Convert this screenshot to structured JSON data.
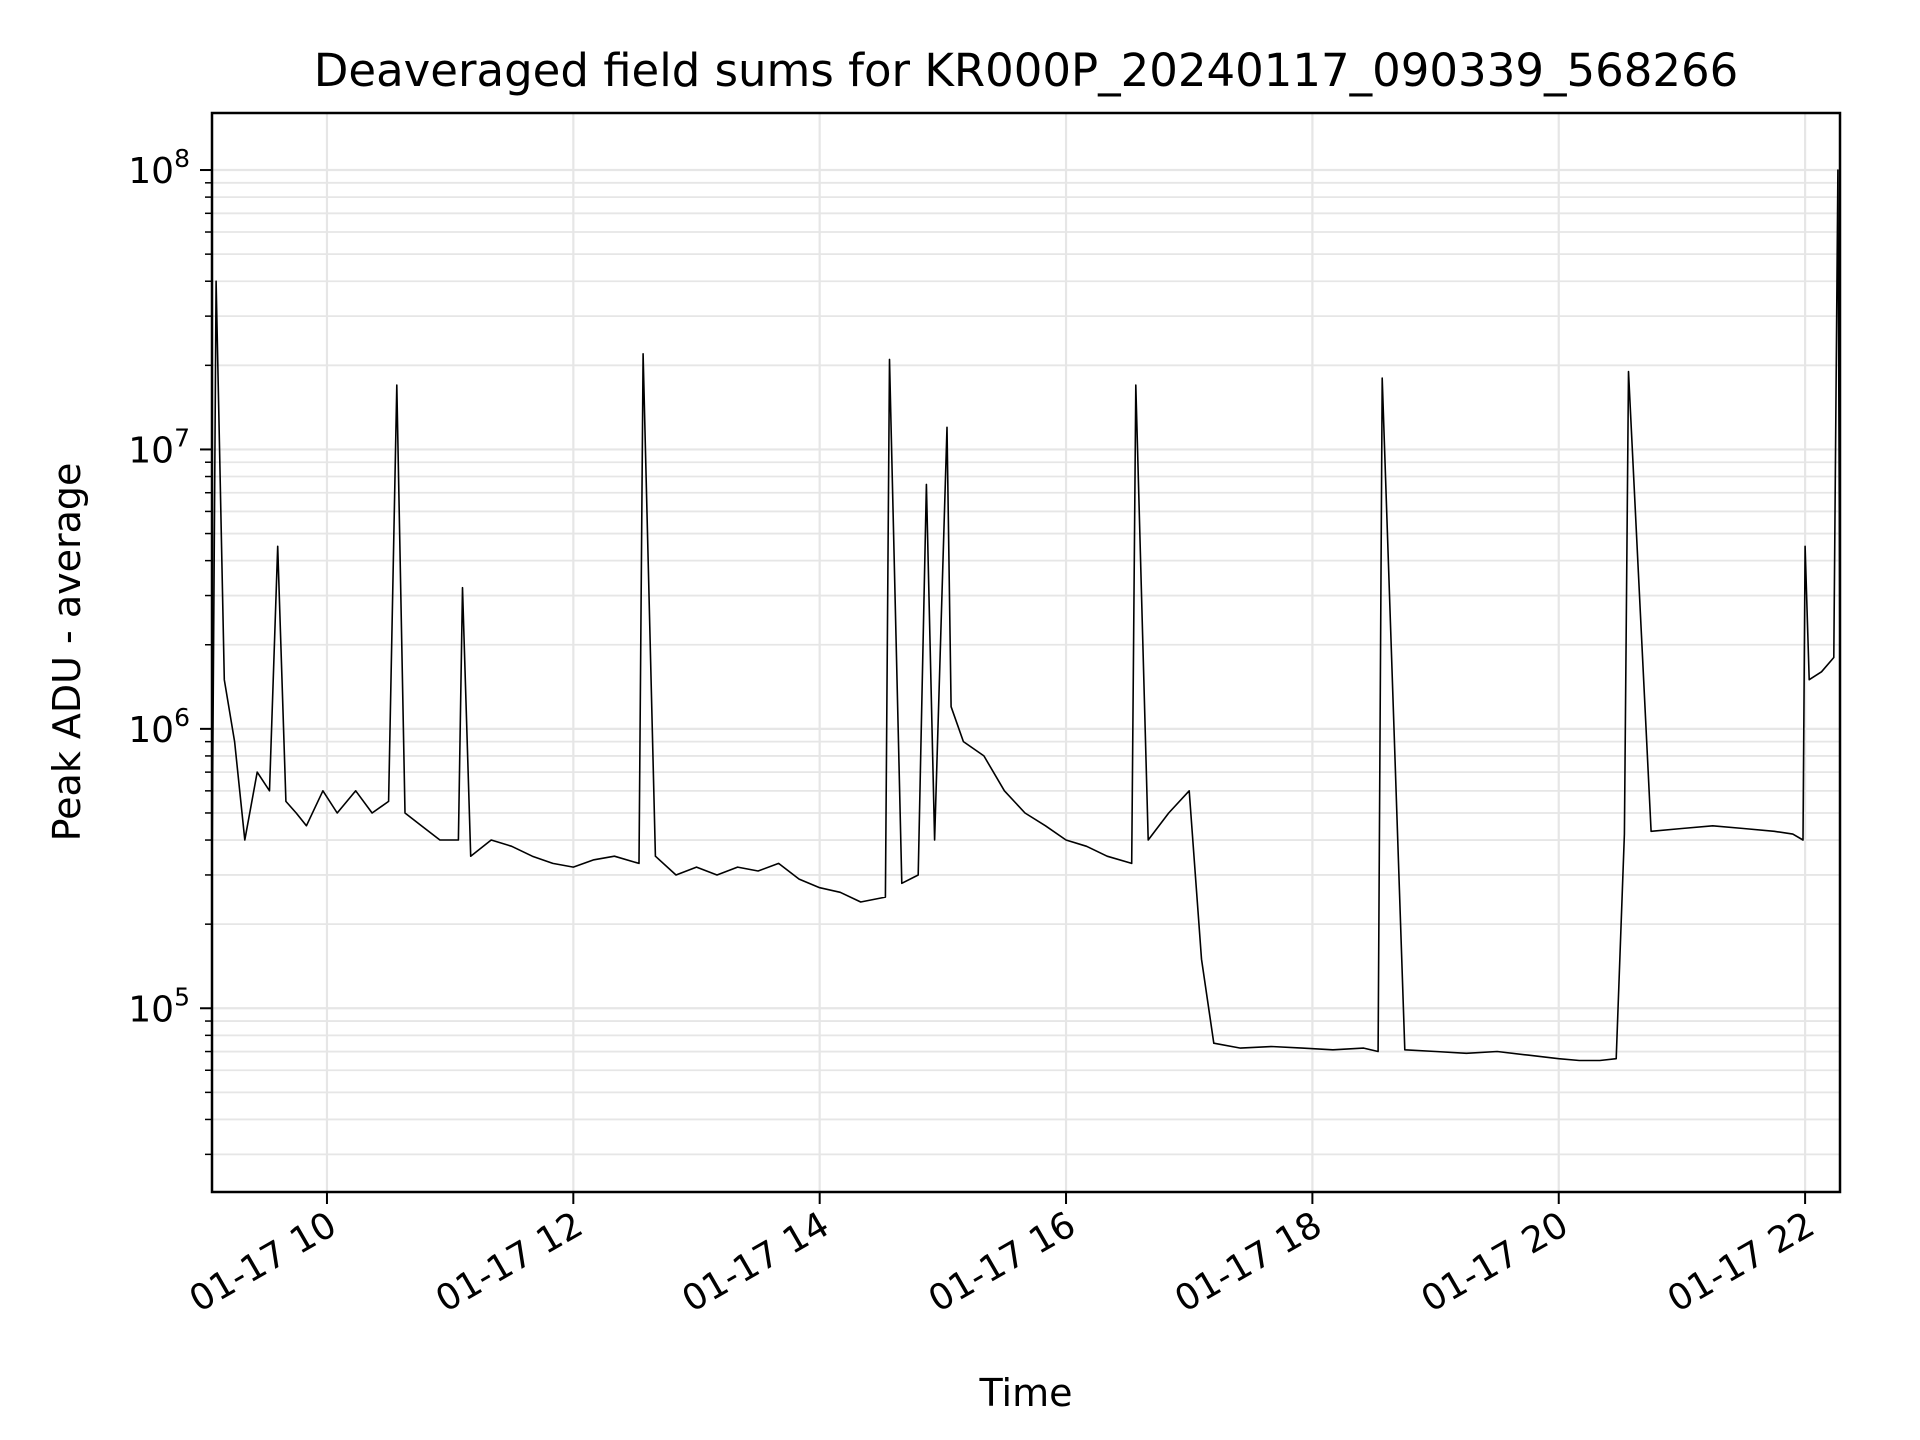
{
  "chart_data": {
    "type": "line",
    "title": "Deaveraged field sums for KR000P_20240117_090339_568266",
    "xlabel": "Time",
    "ylabel": "Peak ADU - average",
    "xscale": "time",
    "yscale": "log",
    "grid": true,
    "line_color": "#000000",
    "grid_color": "#e6e6e6",
    "xlim": [
      "2024-01-17 09:04",
      "2024-01-17 22:17"
    ],
    "ylim": [
      22000,
      160000000
    ],
    "x_ticks": [
      {
        "value": "2024-01-17 10:00",
        "label": "01-17 10"
      },
      {
        "value": "2024-01-17 12:00",
        "label": "01-17 12"
      },
      {
        "value": "2024-01-17 14:00",
        "label": "01-17 14"
      },
      {
        "value": "2024-01-17 16:00",
        "label": "01-17 16"
      },
      {
        "value": "2024-01-17 18:00",
        "label": "01-17 18"
      },
      {
        "value": "2024-01-17 20:00",
        "label": "01-17 20"
      },
      {
        "value": "2024-01-17 22:00",
        "label": "01-17 22"
      }
    ],
    "y_ticks": [
      {
        "value": 100000,
        "base": "10",
        "exp": "5"
      },
      {
        "value": 1000000,
        "base": "10",
        "exp": "6"
      },
      {
        "value": 10000000,
        "base": "10",
        "exp": "7"
      },
      {
        "value": 100000000,
        "base": "10",
        "exp": "8"
      }
    ],
    "series": [
      {
        "x": [
          "2024-01-17 09:04",
          "2024-01-17 09:06",
          "2024-01-17 09:10",
          "2024-01-17 09:15",
          "2024-01-17 09:20",
          "2024-01-17 09:26",
          "2024-01-17 09:32",
          "2024-01-17 09:36",
          "2024-01-17 09:40",
          "2024-01-17 09:45",
          "2024-01-17 09:50",
          "2024-01-17 09:58",
          "2024-01-17 10:05",
          "2024-01-17 10:14",
          "2024-01-17 10:22",
          "2024-01-17 10:30",
          "2024-01-17 10:34",
          "2024-01-17 10:38",
          "2024-01-17 10:46",
          "2024-01-17 10:55",
          "2024-01-17 11:04",
          "2024-01-17 11:06",
          "2024-01-17 11:10",
          "2024-01-17 11:20",
          "2024-01-17 11:30",
          "2024-01-17 11:40",
          "2024-01-17 11:50",
          "2024-01-17 12:00",
          "2024-01-17 12:10",
          "2024-01-17 12:20",
          "2024-01-17 12:32",
          "2024-01-17 12:34",
          "2024-01-17 12:40",
          "2024-01-17 12:50",
          "2024-01-17 13:00",
          "2024-01-17 13:10",
          "2024-01-17 13:20",
          "2024-01-17 13:30",
          "2024-01-17 13:40",
          "2024-01-17 13:50",
          "2024-01-17 14:00",
          "2024-01-17 14:10",
          "2024-01-17 14:20",
          "2024-01-17 14:32",
          "2024-01-17 14:34",
          "2024-01-17 14:40",
          "2024-01-17 14:48",
          "2024-01-17 14:52",
          "2024-01-17 14:56",
          "2024-01-17 15:02",
          "2024-01-17 15:04",
          "2024-01-17 15:10",
          "2024-01-17 15:20",
          "2024-01-17 15:30",
          "2024-01-17 15:40",
          "2024-01-17 15:50",
          "2024-01-17 16:00",
          "2024-01-17 16:10",
          "2024-01-17 16:20",
          "2024-01-17 16:32",
          "2024-01-17 16:34",
          "2024-01-17 16:40",
          "2024-01-17 16:50",
          "2024-01-17 17:00",
          "2024-01-17 17:06",
          "2024-01-17 17:12",
          "2024-01-17 17:25",
          "2024-01-17 17:40",
          "2024-01-17 17:55",
          "2024-01-17 18:10",
          "2024-01-17 18:25",
          "2024-01-17 18:32",
          "2024-01-17 18:34",
          "2024-01-17 18:45",
          "2024-01-17 19:00",
          "2024-01-17 19:15",
          "2024-01-17 19:30",
          "2024-01-17 19:45",
          "2024-01-17 20:00",
          "2024-01-17 20:10",
          "2024-01-17 20:20",
          "2024-01-17 20:28",
          "2024-01-17 20:32",
          "2024-01-17 20:34",
          "2024-01-17 20:45",
          "2024-01-17 21:00",
          "2024-01-17 21:15",
          "2024-01-17 21:30",
          "2024-01-17 21:45",
          "2024-01-17 21:54",
          "2024-01-17 21:59",
          "2024-01-17 22:00",
          "2024-01-17 22:02",
          "2024-01-17 22:08",
          "2024-01-17 22:14",
          "2024-01-17 22:16",
          "2024-01-17 22:17"
        ],
        "y": [
          300000,
          40000000,
          1500000,
          900000,
          400000,
          700000,
          600000,
          4500000,
          550000,
          500000,
          450000,
          600000,
          500000,
          600000,
          500000,
          550000,
          17000000,
          500000,
          450000,
          400000,
          400000,
          3200000,
          350000,
          400000,
          380000,
          350000,
          330000,
          320000,
          340000,
          350000,
          330000,
          22000000,
          350000,
          300000,
          320000,
          300000,
          320000,
          310000,
          330000,
          290000,
          270000,
          260000,
          240000,
          250000,
          21000000,
          280000,
          300000,
          7500000,
          400000,
          12000000,
          1200000,
          900000,
          800000,
          600000,
          500000,
          450000,
          400000,
          380000,
          350000,
          330000,
          17000000,
          400000,
          500000,
          600000,
          150000,
          75000,
          72000,
          73000,
          72000,
          71000,
          72000,
          70000,
          18000000,
          71000,
          70000,
          69000,
          70000,
          68000,
          66000,
          65000,
          65000,
          66000,
          420000,
          19000000,
          430000,
          440000,
          450000,
          440000,
          430000,
          420000,
          400000,
          4500000,
          1500000,
          1600000,
          1800000,
          100000000,
          1500000
        ]
      }
    ]
  }
}
